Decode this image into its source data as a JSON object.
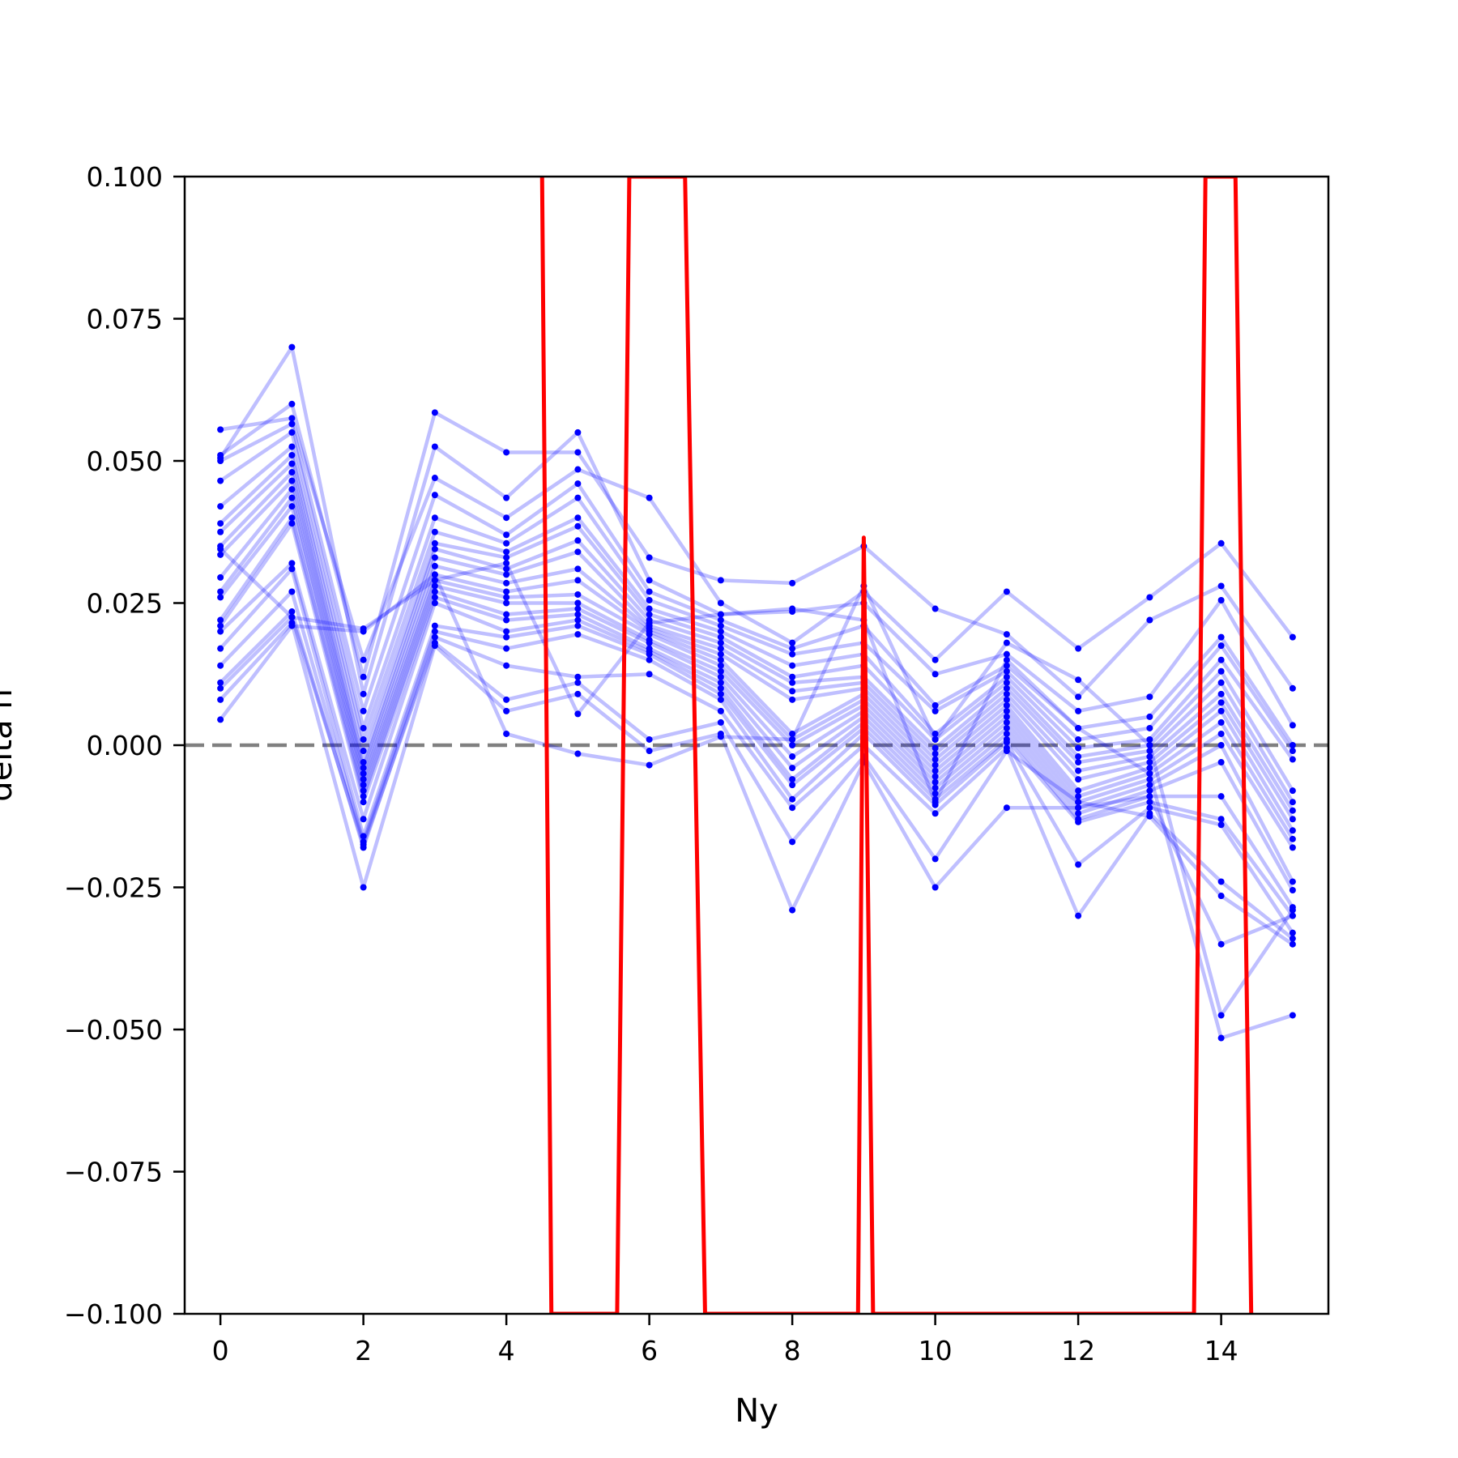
{
  "chart_data": {
    "type": "line",
    "title": "",
    "xlabel": "Ny",
    "ylabel": "delta h",
    "xlim": [
      -0.5,
      15.5
    ],
    "ylim": [
      -0.1,
      0.1
    ],
    "x_ticks": [
      0,
      2,
      4,
      6,
      8,
      10,
      12,
      14
    ],
    "x_tick_labels": [
      "0",
      "2",
      "4",
      "6",
      "8",
      "10",
      "12",
      "14"
    ],
    "y_ticks": [
      -0.1,
      -0.075,
      -0.05,
      -0.025,
      0.0,
      0.025,
      0.05,
      0.075,
      0.1
    ],
    "y_tick_labels": [
      "−0.100",
      "−0.075",
      "−0.050",
      "−0.025",
      "0.000",
      "0.025",
      "0.050",
      "0.075",
      "0.100"
    ],
    "reference_line": {
      "y": 0.0,
      "style": "dashed",
      "color": "#808080"
    },
    "x": [
      0,
      1,
      2,
      3,
      4,
      5,
      6,
      7,
      8,
      9,
      10,
      11,
      12,
      13,
      14,
      15
    ],
    "trial_series_color": "#0000ff",
    "trial_series": [
      [
        0.0555,
        0.0575,
        0.015,
        0.047,
        0.04,
        0.0485,
        0.0435,
        0.025,
        0.018,
        0.027,
        0.015,
        0.027,
        0.017,
        0.026,
        0.0355,
        0.019
      ],
      [
        0.051,
        0.06,
        0.012,
        0.0585,
        0.0515,
        0.0515,
        0.033,
        0.029,
        0.0285,
        0.035,
        0.024,
        0.0195,
        0.0085,
        0.022,
        0.028,
        0.01
      ],
      [
        0.0505,
        0.07,
        0.009,
        0.0525,
        0.0435,
        0.055,
        0.029,
        0.023,
        0.0235,
        0.025,
        0.0125,
        0.016,
        0.006,
        0.0085,
        0.0255,
        0.0035
      ],
      [
        0.05,
        0.0565,
        0.006,
        0.044,
        0.037,
        0.046,
        0.027,
        0.022,
        0.017,
        0.021,
        0.007,
        0.014,
        0.003,
        0.005,
        0.019,
        0.0
      ],
      [
        0.0465,
        0.055,
        0.003,
        0.04,
        0.0355,
        0.0435,
        0.0255,
        0.021,
        0.016,
        0.018,
        0.006,
        0.013,
        0.001,
        0.003,
        0.0175,
        -0.001
      ],
      [
        0.042,
        0.0525,
        0.001,
        0.0375,
        0.034,
        0.04,
        0.024,
        0.02,
        0.014,
        0.016,
        0.002,
        0.012,
        -0.0005,
        0.001,
        0.015,
        -0.0025
      ],
      [
        0.039,
        0.051,
        -0.001,
        0.0355,
        0.033,
        0.0385,
        0.023,
        0.019,
        0.012,
        0.014,
        0.001,
        0.011,
        -0.002,
        0.0,
        0.013,
        -0.008
      ],
      [
        0.0375,
        0.0495,
        -0.003,
        0.0345,
        0.031,
        0.036,
        0.022,
        0.018,
        0.011,
        0.012,
        -0.0005,
        0.01,
        -0.003,
        -0.001,
        0.011,
        -0.01
      ],
      [
        0.035,
        0.048,
        -0.004,
        0.033,
        0.03,
        0.034,
        0.021,
        0.017,
        0.0095,
        0.011,
        -0.0015,
        0.009,
        -0.0045,
        -0.002,
        0.009,
        -0.0115
      ],
      [
        0.0335,
        0.0465,
        -0.005,
        0.0315,
        0.0285,
        0.031,
        0.0205,
        0.016,
        0.008,
        0.01,
        -0.0025,
        0.008,
        -0.006,
        -0.003,
        0.0075,
        -0.013
      ],
      [
        0.0295,
        0.045,
        -0.006,
        0.03,
        0.027,
        0.029,
        0.02,
        0.015,
        0.002,
        0.009,
        -0.0035,
        0.007,
        -0.008,
        -0.004,
        0.006,
        -0.015
      ],
      [
        0.027,
        0.0435,
        -0.007,
        0.029,
        0.026,
        0.0265,
        0.0195,
        0.014,
        0.001,
        0.008,
        -0.0045,
        0.006,
        -0.009,
        -0.005,
        0.004,
        -0.0165
      ],
      [
        0.026,
        0.042,
        -0.008,
        0.028,
        0.025,
        0.025,
        0.0185,
        0.013,
        0.0,
        0.007,
        -0.0055,
        0.005,
        -0.01,
        -0.006,
        0.002,
        -0.018
      ],
      [
        0.022,
        0.04,
        -0.009,
        0.027,
        0.023,
        0.024,
        0.018,
        0.012,
        -0.002,
        0.006,
        -0.0065,
        0.004,
        -0.011,
        -0.007,
        0.0,
        -0.024
      ],
      [
        0.021,
        0.039,
        -0.01,
        0.026,
        0.022,
        0.023,
        0.017,
        0.011,
        -0.004,
        0.005,
        -0.0075,
        0.003,
        -0.012,
        -0.008,
        -0.003,
        -0.0255
      ],
      [
        0.02,
        0.032,
        -0.013,
        0.025,
        0.02,
        0.022,
        0.0165,
        0.01,
        -0.006,
        0.004,
        -0.0085,
        0.002,
        -0.013,
        -0.009,
        -0.009,
        -0.0285
      ],
      [
        0.017,
        0.031,
        -0.016,
        0.021,
        0.019,
        0.021,
        0.016,
        0.009,
        -0.007,
        0.003,
        -0.0095,
        0.001,
        -0.0135,
        -0.01,
        -0.013,
        -0.03
      ],
      [
        0.014,
        0.027,
        -0.017,
        0.02,
        0.017,
        0.0195,
        0.015,
        0.008,
        -0.0095,
        0.002,
        -0.0105,
        0.0005,
        -0.021,
        -0.011,
        -0.014,
        -0.033
      ],
      [
        0.011,
        0.0235,
        -0.018,
        0.019,
        0.014,
        0.012,
        0.0125,
        0.006,
        -0.011,
        0.0,
        -0.012,
        -0.0005,
        -0.03,
        -0.012,
        -0.024,
        -0.034
      ],
      [
        0.01,
        0.0225,
        -0.0175,
        0.018,
        0.008,
        0.011,
        0.001,
        0.004,
        -0.017,
        -0.002,
        -0.02,
        -0.001,
        -0.01,
        -0.0125,
        -0.0265,
        -0.035
      ],
      [
        0.008,
        0.0215,
        -0.025,
        0.0175,
        0.006,
        0.009,
        -0.001,
        0.002,
        -0.029,
        -0.003,
        -0.025,
        -0.011,
        -0.011,
        -0.009,
        -0.035,
        -0.03
      ],
      [
        0.0045,
        0.021,
        0.02,
        0.03,
        0.002,
        -0.0015,
        -0.0035,
        0.0015,
        0.001,
        0.028,
        0.001,
        0.018,
        0.0115,
        0.0,
        -0.0475,
        -0.029
      ],
      [
        0.0345,
        0.0225,
        0.0205,
        0.029,
        0.032,
        0.0055,
        0.0215,
        0.023,
        0.024,
        0.022,
        -0.01,
        0.015,
        0.003,
        -0.005,
        -0.0515,
        -0.0475
      ]
    ],
    "highlight_series": {
      "color": "#ff0000",
      "x": [
        4.5,
        4.63,
        5.55,
        5.72,
        6.5,
        6.78,
        8.92,
        9.0,
        9.13,
        13.62,
        13.78,
        14.2,
        14.42
      ],
      "y": [
        0.1,
        -0.1,
        -0.1,
        0.1,
        0.1,
        -0.1,
        -0.1,
        0.0365,
        -0.1,
        -0.1,
        0.1,
        0.1,
        -0.1
      ]
    }
  }
}
